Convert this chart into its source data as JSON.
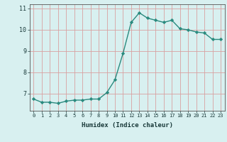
{
  "x": [
    0,
    1,
    2,
    3,
    4,
    5,
    6,
    7,
    8,
    9,
    10,
    11,
    12,
    13,
    14,
    15,
    16,
    17,
    18,
    19,
    20,
    21,
    22,
    23
  ],
  "y": [
    6.75,
    6.6,
    6.6,
    6.55,
    6.65,
    6.7,
    6.7,
    6.75,
    6.75,
    7.05,
    7.65,
    8.9,
    10.35,
    10.8,
    10.55,
    10.45,
    10.35,
    10.45,
    10.05,
    10.0,
    9.9,
    9.85,
    9.55,
    9.55
  ],
  "xlabel": "Humidex (Indice chaleur)",
  "ylim": [
    6.2,
    11.2
  ],
  "xlim": [
    -0.5,
    23.5
  ],
  "yticks": [
    7,
    8,
    9,
    10,
    11
  ],
  "xtick_labels": [
    "0",
    "1",
    "2",
    "3",
    "4",
    "5",
    "6",
    "7",
    "8",
    "9",
    "10",
    "11",
    "12",
    "13",
    "14",
    "15",
    "16",
    "17",
    "18",
    "19",
    "20",
    "21",
    "22",
    "23"
  ],
  "line_color": "#2a8a7e",
  "marker_color": "#2a8a7e",
  "bg_color": "#d8f0f0",
  "grid_color": "#d8a0a0",
  "marker": "D",
  "markersize": 2.2,
  "linewidth": 1.0
}
